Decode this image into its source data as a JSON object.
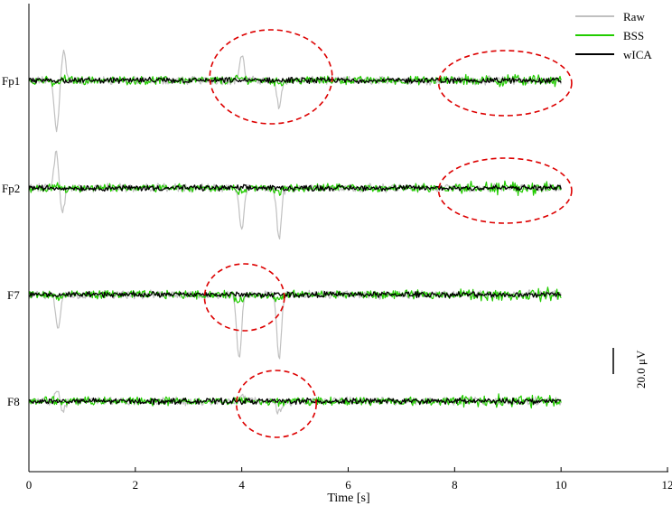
{
  "chart_data": {
    "type": "line",
    "title": "",
    "xlabel": "Time [s]",
    "ylabel": "",
    "xlim": [
      0,
      12
    ],
    "x_ticks": [
      0,
      2,
      4,
      6,
      8,
      10,
      12
    ],
    "x_tick_labels": [
      "0",
      "2",
      "4",
      "6",
      "8",
      "10",
      "12"
    ],
    "grid": false,
    "legend_position": "top-right",
    "channels": [
      "Fp1",
      "Fp2",
      "F7",
      "F8"
    ],
    "scale_bar": {
      "value": 20.0,
      "label": "20.0 μV"
    },
    "series": [
      {
        "name": "Raw",
        "color": "#c0c0c0"
      },
      {
        "name": "BSS",
        "color": "#22cc00"
      },
      {
        "name": "wICA",
        "color": "#000000"
      }
    ],
    "channel_events": {
      "Fp1": [
        {
          "t": 0.52,
          "amp": -70
        },
        {
          "t": 0.65,
          "amp": 40
        },
        {
          "t": 4.0,
          "amp": 35
        },
        {
          "t": 4.7,
          "amp": -35
        }
      ],
      "Fp2": [
        {
          "t": 0.52,
          "amp": 55
        },
        {
          "t": 0.62,
          "amp": -40
        },
        {
          "t": 4.0,
          "amp": -60
        },
        {
          "t": 4.7,
          "amp": -70
        }
      ],
      "F7": [
        {
          "t": 0.55,
          "amp": -45
        },
        {
          "t": 3.95,
          "amp": -90
        },
        {
          "t": 4.7,
          "amp": -90
        }
      ],
      "F8": [
        {
          "t": 0.55,
          "amp": 20
        },
        {
          "t": 0.62,
          "amp": -22
        },
        {
          "t": 4.0,
          "amp": 10
        },
        {
          "t": 4.7,
          "amp": -15
        }
      ]
    },
    "annotations": [
      {
        "type": "dashed-ellipse",
        "color": "#dd0000",
        "channel": "Fp1",
        "t_range": [
          3.4,
          5.7
        ]
      },
      {
        "type": "dashed-ellipse",
        "color": "#dd0000",
        "channel": "Fp1",
        "t_range": [
          7.7,
          10.2
        ]
      },
      {
        "type": "dashed-ellipse",
        "color": "#dd0000",
        "channel": "Fp2",
        "t_range": [
          7.7,
          10.2
        ]
      },
      {
        "type": "dashed-ellipse",
        "color": "#dd0000",
        "channel": "F7",
        "t_range": [
          3.3,
          4.8
        ]
      },
      {
        "type": "dashed-ellipse",
        "color": "#dd0000",
        "channel": "F8",
        "t_range": [
          3.9,
          5.4
        ]
      }
    ]
  }
}
